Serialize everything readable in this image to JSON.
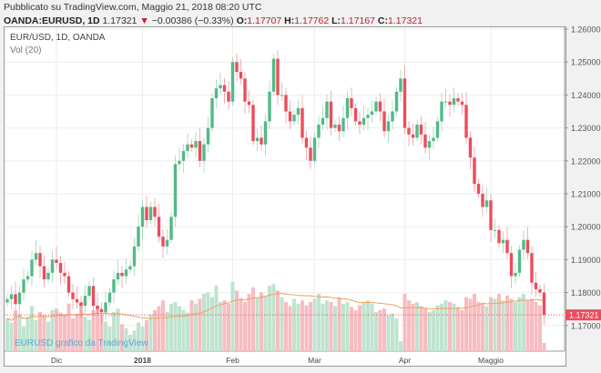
{
  "header": {
    "published": "Pubblicato su TradingView.com, Maggio 21, 2018 08:20 UTC",
    "symbol": "OANDA:EURUSD, 1D",
    "last": "1.17321",
    "change": "−0.00386 (−0.33%)",
    "o_label": "O:",
    "o": "1.17707",
    "h_label": "H:",
    "h": "1.17762",
    "l_label": "L:",
    "l": "1.17167",
    "c_label": "C:",
    "c": "1.17321"
  },
  "legend": {
    "title": "EUR/USD, 1D, OANDA",
    "vol": "Vol (20)"
  },
  "watermark": "EURUSD grafico da TradingView",
  "colors": {
    "up": "#53b987",
    "down": "#eb4d5c",
    "vol_up": "#bfe3cf",
    "vol_down": "#f7bcc1",
    "vol_ma": "#f0a060"
  },
  "chart_data": {
    "type": "candlestick",
    "title": "EUR/USD, 1D, OANDA",
    "ylim": [
      1.16,
      1.262
    ],
    "yticks": [
      "1.26000",
      "1.25000",
      "1.24000",
      "1.23000",
      "1.22000",
      "1.21000",
      "1.20000",
      "1.19000",
      "1.18000",
      "1.17000"
    ],
    "xticks": [
      {
        "label": "Dic",
        "index": 12
      },
      {
        "label": "2018",
        "index": 33
      },
      {
        "label": "Feb",
        "index": 55
      },
      {
        "label": "Mar",
        "index": 75
      },
      {
        "label": "Apr",
        "index": 97
      },
      {
        "label": "Maggio",
        "index": 118
      }
    ],
    "last_price_label": "1.17321",
    "open_first": 1.177,
    "closes": [
      1.178,
      1.1795,
      1.1765,
      1.18,
      1.184,
      1.185,
      1.19,
      1.192,
      1.188,
      1.184,
      1.186,
      1.19,
      1.189,
      1.186,
      1.185,
      1.18,
      1.178,
      1.177,
      1.176,
      1.179,
      1.182,
      1.176,
      1.175,
      1.174,
      1.177,
      1.18,
      1.184,
      1.186,
      1.185,
      1.187,
      1.188,
      1.194,
      1.2,
      1.206,
      1.202,
      1.206,
      1.203,
      1.197,
      1.194,
      1.196,
      1.203,
      1.219,
      1.22,
      1.223,
      1.225,
      1.224,
      1.226,
      1.22,
      1.225,
      1.23,
      1.239,
      1.242,
      1.243,
      1.241,
      1.238,
      1.25,
      1.247,
      1.245,
      1.238,
      1.237,
      1.226,
      1.227,
      1.225,
      1.232,
      1.241,
      1.251,
      1.24,
      1.24,
      1.235,
      1.232,
      1.234,
      1.236,
      1.227,
      1.224,
      1.22,
      1.227,
      1.231,
      1.233,
      1.238,
      1.23,
      1.231,
      1.229,
      1.233,
      1.239,
      1.236,
      1.232,
      1.231,
      1.233,
      1.234,
      1.235,
      1.238,
      1.235,
      1.229,
      1.232,
      1.235,
      1.241,
      1.245,
      1.23,
      1.228,
      1.227,
      1.231,
      1.228,
      1.224,
      1.226,
      1.227,
      1.232,
      1.238,
      1.238,
      1.237,
      1.239,
      1.238,
      1.237,
      1.227,
      1.221,
      1.213,
      1.21,
      1.206,
      1.208,
      1.199,
      1.199,
      1.195,
      1.196,
      1.192,
      1.185,
      1.186,
      1.193,
      1.196,
      1.192,
      1.183,
      1.181,
      1.18,
      1.1732
    ],
    "volume": [
      40,
      35,
      50,
      45,
      30,
      42,
      55,
      38,
      48,
      44,
      36,
      50,
      52,
      47,
      45,
      58,
      40,
      46,
      60,
      42,
      38,
      50,
      55,
      44,
      36,
      30,
      48,
      52,
      33,
      28,
      20,
      25,
      35,
      30,
      38,
      45,
      50,
      55,
      62,
      48,
      58,
      60,
      55,
      50,
      47,
      62,
      58,
      64,
      70,
      72,
      66,
      80,
      60,
      62,
      58,
      85,
      74,
      65,
      60,
      70,
      78,
      66,
      72,
      68,
      80,
      82,
      74,
      66,
      60,
      55,
      64,
      58,
      62,
      56,
      60,
      64,
      70,
      58,
      62,
      60,
      55,
      66,
      58,
      60,
      54,
      50,
      56,
      60,
      62,
      58,
      48,
      50,
      52,
      44,
      46,
      40,
      12,
      70,
      62,
      58,
      60,
      55,
      52,
      48,
      50,
      56,
      58,
      62,
      60,
      58,
      54,
      50,
      66,
      64,
      70,
      60,
      58,
      55,
      66,
      64,
      70,
      62,
      68,
      64,
      60,
      66,
      70,
      62,
      64,
      60,
      56,
      10
    ]
  }
}
